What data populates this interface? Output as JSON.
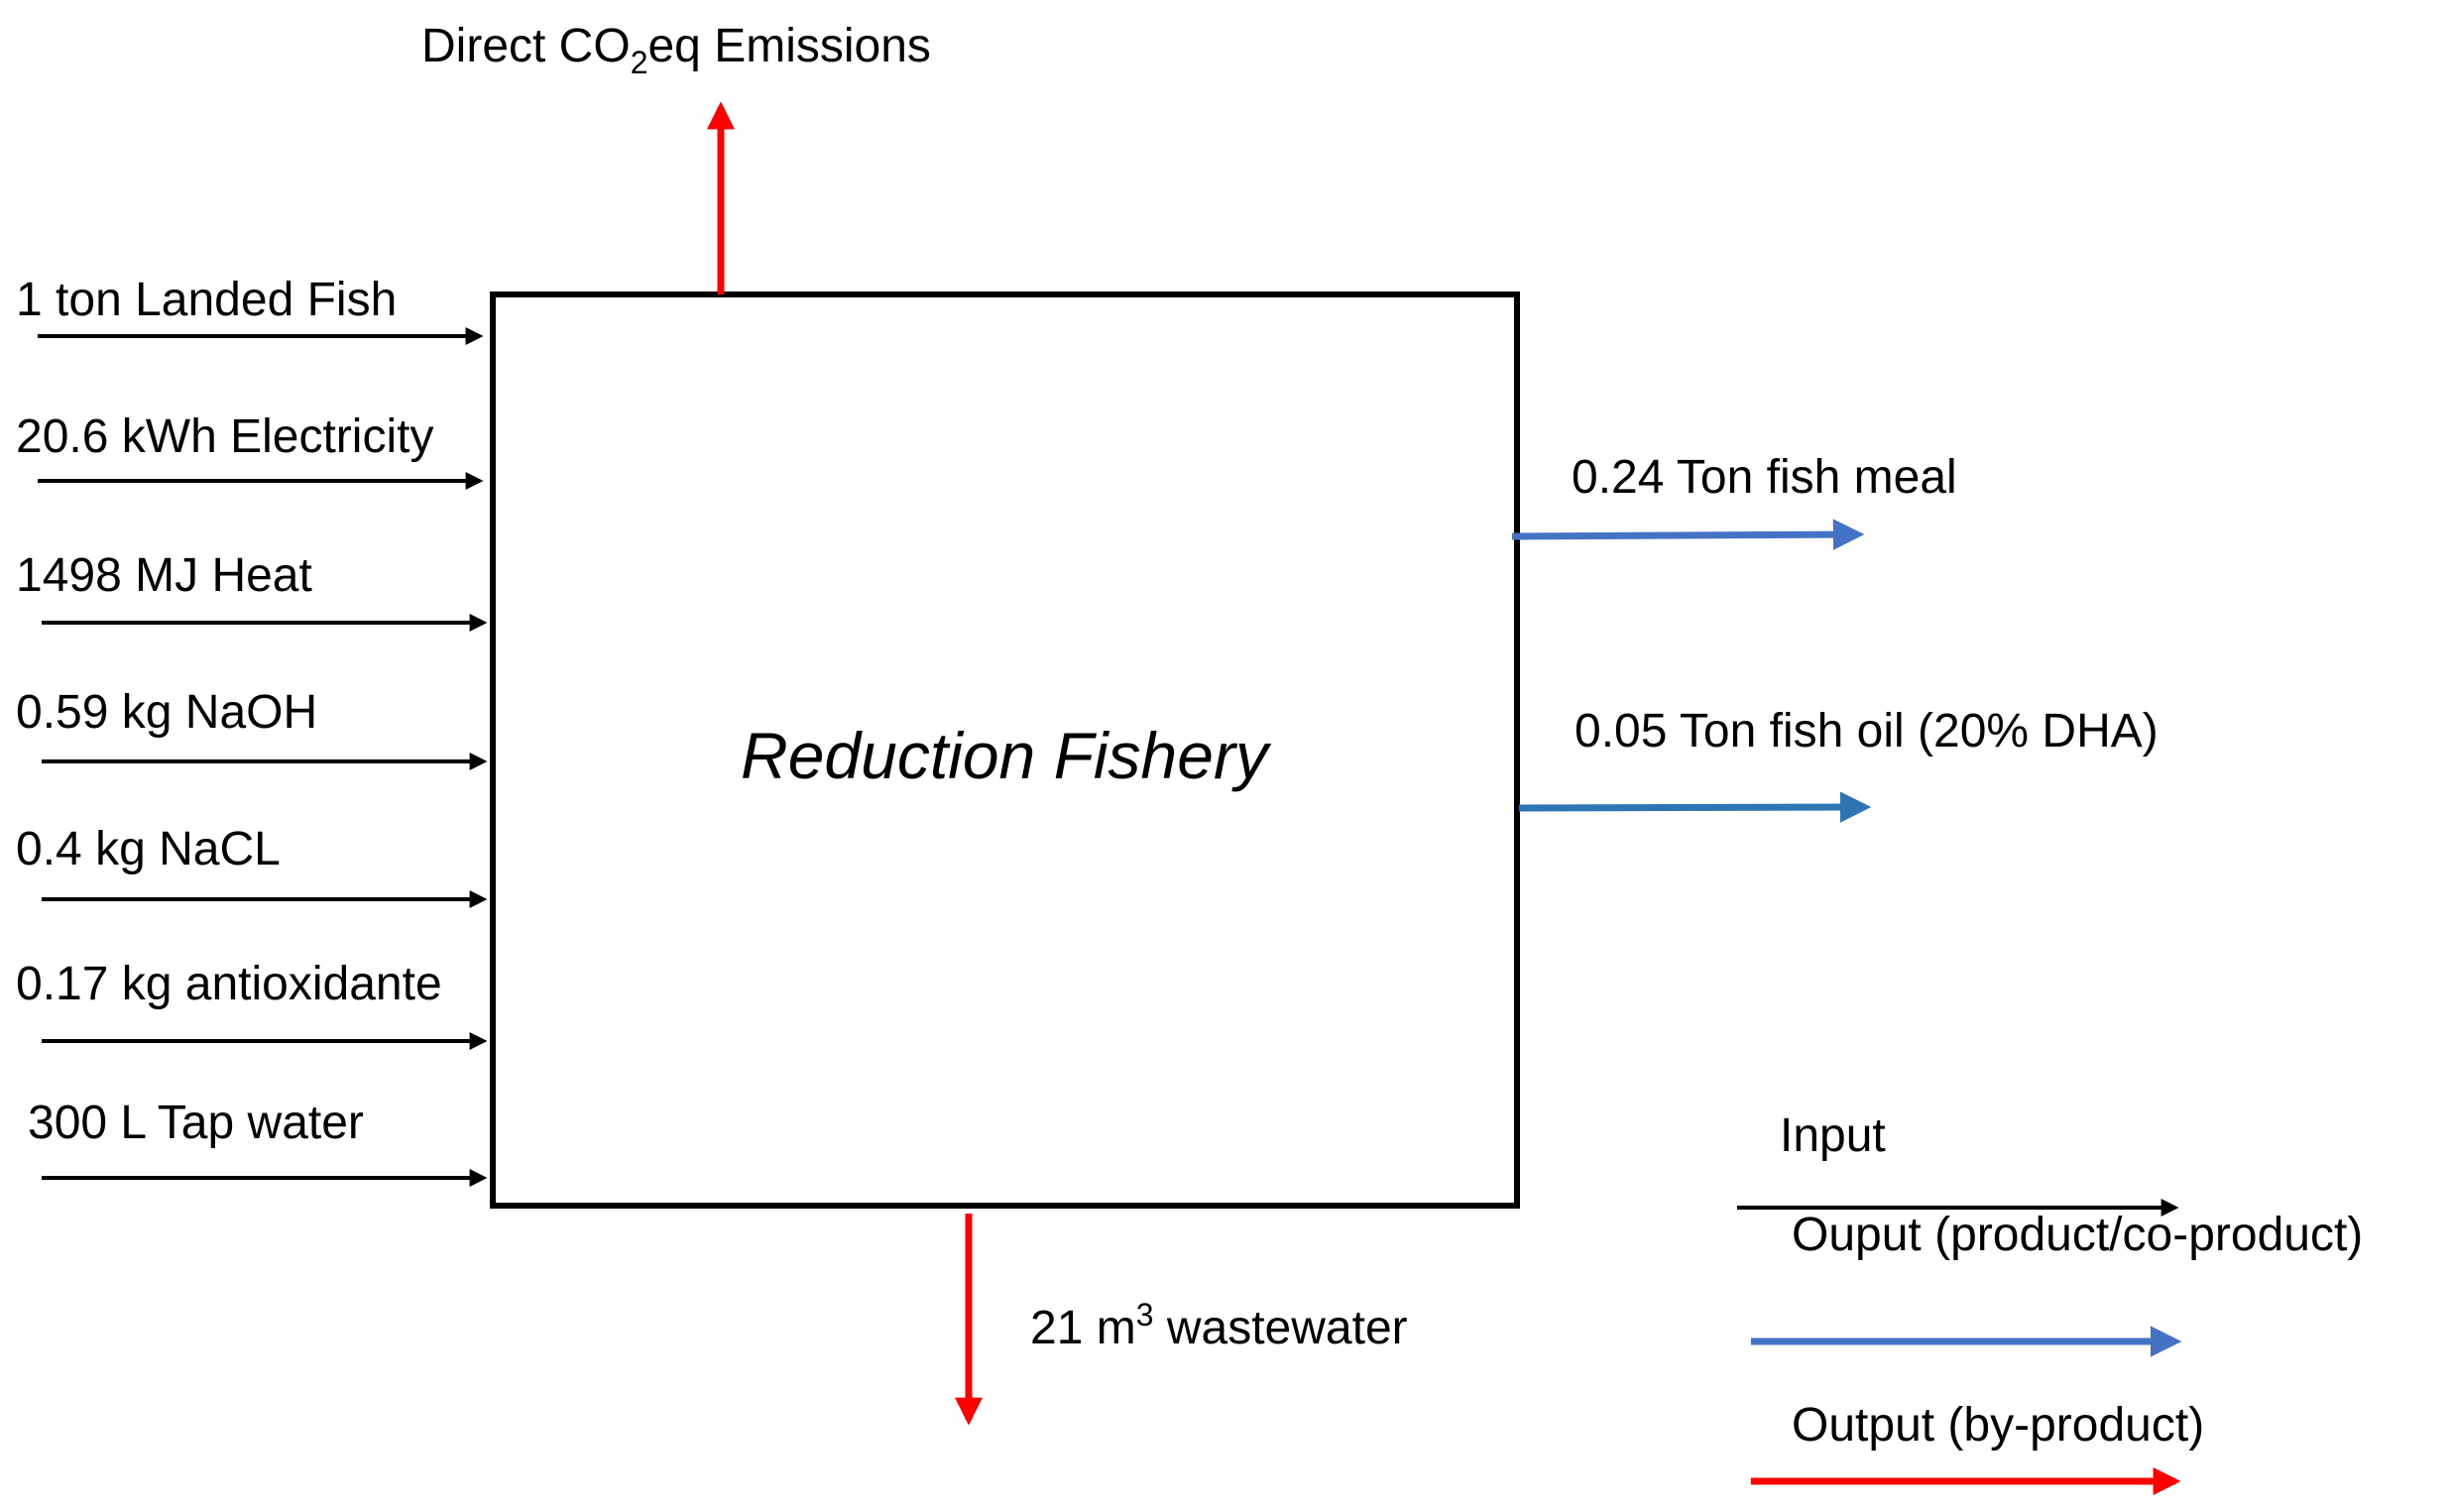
{
  "process": {
    "name": "Reduction Fishery"
  },
  "emissions": {
    "prefix": "Direct CO",
    "subscript": "2",
    "suffix": "eq  Emissions"
  },
  "inputs": [
    {
      "label": "1 ton Landed Fish"
    },
    {
      "label": "20.6 kWh Electricity"
    },
    {
      "label": "1498 MJ Heat"
    },
    {
      "label": "0.59 kg NaOH"
    },
    {
      "label": "0.4 kg NaCL"
    },
    {
      "label": "0.17 kg antioxidante"
    },
    {
      "label": "300  L Tap water"
    }
  ],
  "outputs": [
    {
      "label": "0.24 Ton fish meal"
    },
    {
      "label": "0.05 Ton fish oil (20% DHA)"
    }
  ],
  "wastewater": {
    "prefix": "21 m",
    "superscript": "3",
    "suffix": " wastewater"
  },
  "legend": {
    "input": "Input",
    "output_product": "Ouput (product/co-product)",
    "output_byproduct": "Output (by-product)"
  },
  "colors": {
    "input": "#000000",
    "output_product": "#4472C4",
    "output_product_oil": "#2E75B6",
    "output_byproduct": "#FF0000"
  }
}
